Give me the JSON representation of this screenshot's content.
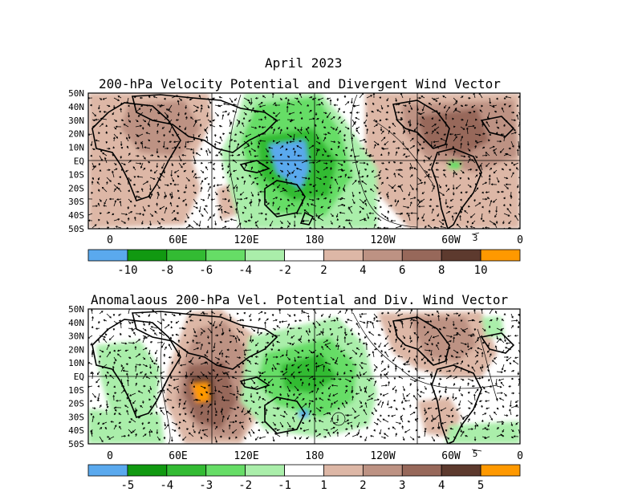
{
  "header": {
    "title": "April 2023",
    "panel1_title": "200-hPa Velocity Potential and Divergent Wind Vector",
    "panel2_title": "Anomalaous 200-hPa Vel. Potential and Div. Wind Vector"
  },
  "axes": {
    "lat_labels": [
      "50N",
      "40N",
      "30N",
      "20N",
      "10N",
      "EQ",
      "10S",
      "20S",
      "30S",
      "40S",
      "50S"
    ],
    "lon_labels": [
      "0",
      "60E",
      "120E",
      "180",
      "120W",
      "60W",
      "0"
    ]
  },
  "panel1": {
    "vector_ref_label": "3",
    "colorbar_labels": [
      "-10",
      "-8",
      "-6",
      "-4",
      "-2",
      "2",
      "4",
      "6",
      "8",
      "10"
    ],
    "colorbar_colors": [
      "#5aa9ee",
      "#119911",
      "#33bb33",
      "#66dd66",
      "#aaeeaa",
      "#ffffff",
      "#ddb7a6",
      "#bd9283",
      "#97685a",
      "#5d3a2e",
      "#ff9900"
    ]
  },
  "panel2": {
    "vector_ref_label": "5",
    "colorbar_labels": [
      "-5",
      "-4",
      "-3",
      "-2",
      "-1",
      "1",
      "2",
      "3",
      "4",
      "5"
    ],
    "colorbar_colors": [
      "#5aa9ee",
      "#119911",
      "#33bb33",
      "#66dd66",
      "#aaeeaa",
      "#ffffff",
      "#ddb7a6",
      "#bd9283",
      "#97685a",
      "#5d3a2e",
      "#ff9900"
    ]
  }
}
